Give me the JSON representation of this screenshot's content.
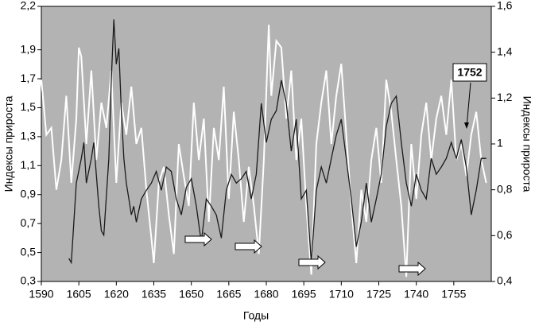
{
  "chart_data": {
    "type": "line",
    "x_label": "Годы",
    "y_label": "Индексы прироста",
    "y2_label": "Индексы прироста",
    "annotation": "1752",
    "xlim": [
      1590,
      1770
    ],
    "xticks": [
      1590,
      1605,
      1620,
      1635,
      1650,
      1665,
      1680,
      1695,
      1710,
      1725,
      1740,
      1755
    ],
    "ylim": [
      0.3,
      2.2
    ],
    "yticks": [
      {
        "value": 0.3,
        "label": "0,3"
      },
      {
        "value": 0.5,
        "label": "0,5"
      },
      {
        "value": 0.7,
        "label": "0,7"
      },
      {
        "value": 0.9,
        "label": "0,9"
      },
      {
        "value": 1.1,
        "label": "1,1"
      },
      {
        "value": 1.3,
        "label": "1,3"
      },
      {
        "value": 1.5,
        "label": "1,5"
      },
      {
        "value": 1.7,
        "label": "1,7"
      },
      {
        "value": 1.9,
        "label": "1,9"
      },
      {
        "value": 2.2,
        "label": "2,2"
      }
    ],
    "y2lim": [
      0.4,
      1.6
    ],
    "y2ticks": [
      {
        "value": 0.4,
        "label": "0,4"
      },
      {
        "value": 0.6,
        "label": "0,6"
      },
      {
        "value": 0.8,
        "label": "0,8"
      },
      1,
      {
        "value": 1.2,
        "label": "1,2"
      },
      {
        "value": 1.4,
        "label": "1,4"
      },
      {
        "value": 1.6,
        "label": "1,6"
      }
    ],
    "background": "#b3b3b3",
    "series": [
      {
        "color": "#ffffff",
        "axis": "y2",
        "x": [
          1590,
          1592,
          1594,
          1596,
          1598,
          1600,
          1602,
          1604,
          1605,
          1606,
          1608,
          1610,
          1612,
          1614,
          1616,
          1618,
          1620,
          1622,
          1624,
          1626,
          1628,
          1630,
          1632,
          1634,
          1635,
          1637,
          1639,
          1641,
          1643,
          1645,
          1647,
          1649,
          1651,
          1653,
          1655,
          1657,
          1659,
          1661,
          1663,
          1665,
          1667,
          1669,
          1671,
          1673,
          1675,
          1677,
          1679,
          1681,
          1682,
          1684,
          1686,
          1688,
          1690,
          1692,
          1694,
          1696,
          1698,
          1700,
          1702,
          1704,
          1706,
          1708,
          1710,
          1712,
          1714,
          1716,
          1718,
          1720,
          1722,
          1724,
          1726,
          1728,
          1730,
          1732,
          1734,
          1736,
          1738,
          1740,
          1742,
          1744,
          1746,
          1748,
          1750,
          1752,
          1754,
          1756,
          1758,
          1760,
          1762,
          1764,
          1766,
          1768
        ],
        "values": [
          1.28,
          1.04,
          1.07,
          0.8,
          0.93,
          1.21,
          0.83,
          1.11,
          1.42,
          1.38,
          1.0,
          1.32,
          0.93,
          1.18,
          1.07,
          1.32,
          0.83,
          1.18,
          1.04,
          1.25,
          1.0,
          1.07,
          0.8,
          0.59,
          0.48,
          0.83,
          0.9,
          0.69,
          0.52,
          1.0,
          0.86,
          0.73,
          1.18,
          0.93,
          1.11,
          0.66,
          1.07,
          0.93,
          1.25,
          0.76,
          1.14,
          0.93,
          0.66,
          0.9,
          0.73,
          0.52,
          0.93,
          1.52,
          1.21,
          1.45,
          1.42,
          1.11,
          1.32,
          0.93,
          1.11,
          0.73,
          0.43,
          1.0,
          1.18,
          1.32,
          1.0,
          1.21,
          1.35,
          1.04,
          0.73,
          0.48,
          0.8,
          0.66,
          0.93,
          1.07,
          0.83,
          1.28,
          1.14,
          0.93,
          0.73,
          0.42,
          1.0,
          0.76,
          1.04,
          1.18,
          0.93,
          1.11,
          1.21,
          1.04,
          1.28,
          0.93,
          1.0,
          0.86,
          1.04,
          1.14,
          0.93,
          0.83
        ]
      },
      {
        "color": "#1a1a1a",
        "axis": "y",
        "x": [
          1601,
          1602,
          1604,
          1606,
          1607,
          1608,
          1610,
          1611,
          1613,
          1614,
          1615,
          1617,
          1618,
          1619,
          1620,
          1621,
          1622,
          1623,
          1624,
          1625,
          1626,
          1627,
          1628,
          1630,
          1632,
          1634,
          1636,
          1638,
          1640,
          1642,
          1644,
          1646,
          1648,
          1650,
          1652,
          1654,
          1656,
          1658,
          1660,
          1662,
          1664,
          1666,
          1668,
          1670,
          1672,
          1674,
          1676,
          1678,
          1680,
          1682,
          1684,
          1686,
          1688,
          1690,
          1692,
          1694,
          1696,
          1698,
          1700,
          1702,
          1704,
          1706,
          1708,
          1710,
          1712,
          1714,
          1716,
          1718,
          1720,
          1722,
          1724,
          1726,
          1728,
          1730,
          1732,
          1734,
          1736,
          1738,
          1740,
          1742,
          1744,
          1746,
          1748,
          1750,
          1752,
          1754,
          1756,
          1758,
          1760,
          1762,
          1764,
          1766,
          1768
        ],
        "values": [
          0.46,
          0.43,
          0.98,
          1.15,
          1.26,
          0.98,
          1.15,
          1.26,
          0.82,
          0.65,
          0.62,
          1.15,
          1.69,
          2.11,
          1.8,
          1.91,
          1.48,
          1.15,
          0.98,
          0.87,
          0.76,
          0.82,
          0.71,
          0.87,
          0.93,
          0.98,
          1.06,
          0.93,
          1.09,
          1.06,
          0.87,
          0.76,
          0.95,
          1.01,
          0.82,
          0.57,
          0.87,
          0.82,
          0.76,
          0.6,
          0.93,
          1.04,
          0.98,
          1.01,
          1.06,
          0.87,
          1.04,
          1.53,
          1.26,
          1.42,
          1.48,
          1.69,
          1.53,
          1.2,
          1.42,
          0.87,
          0.93,
          0.43,
          0.93,
          1.09,
          0.98,
          1.15,
          1.31,
          1.42,
          1.15,
          0.87,
          0.54,
          0.71,
          0.98,
          0.71,
          0.87,
          1.04,
          1.37,
          1.53,
          1.58,
          1.26,
          0.98,
          0.82,
          1.04,
          0.93,
          0.87,
          1.15,
          1.04,
          1.09,
          1.15,
          1.26,
          1.15,
          1.28,
          1.09,
          0.76,
          0.93,
          1.15,
          1.15
        ]
      }
    ]
  }
}
